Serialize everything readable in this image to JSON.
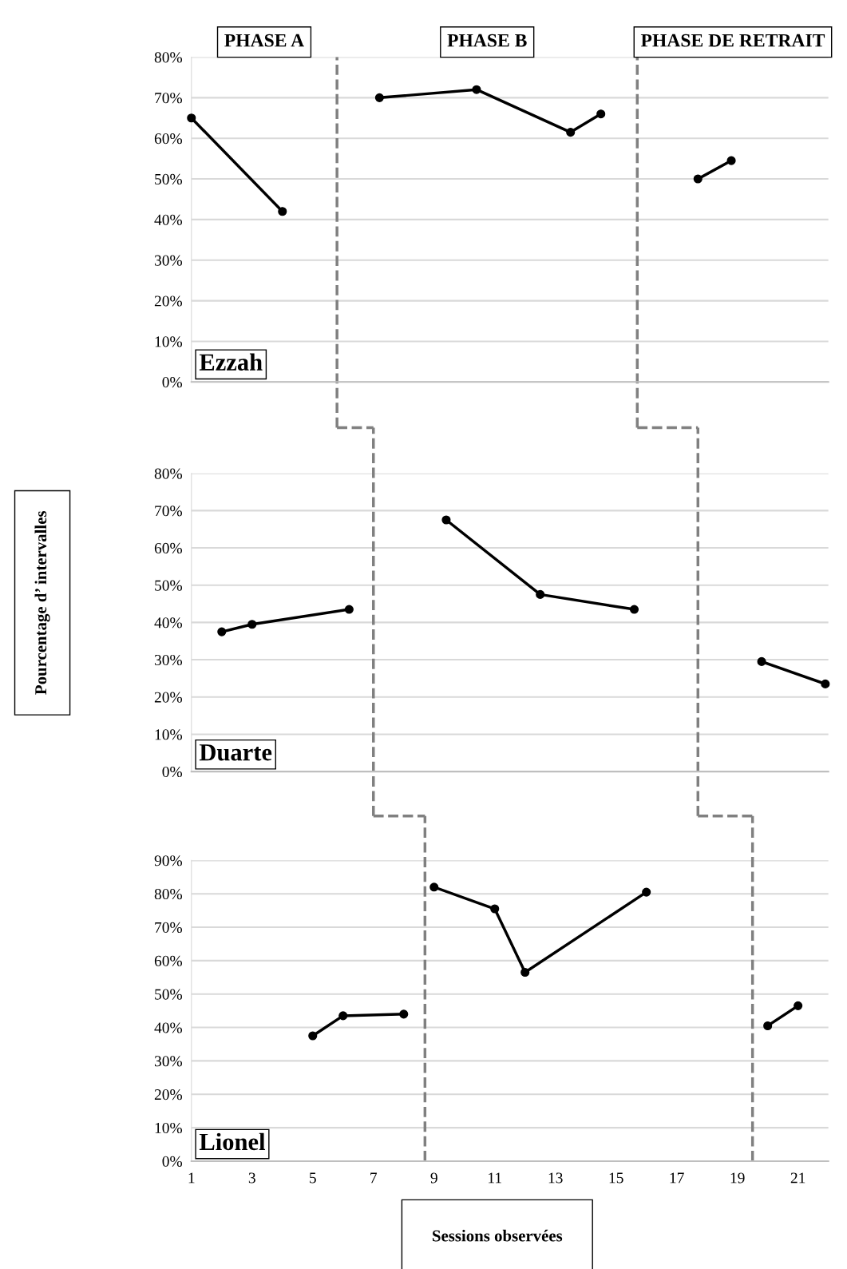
{
  "chart_data": [
    {
      "type": "line",
      "title": "Ezzah",
      "annotations": [
        "PHASE A",
        "PHASE B",
        "PHASE DE RETRAIT"
      ],
      "xlim": [
        1,
        22
      ],
      "ylim": [
        0,
        80
      ],
      "tick_labels": "y",
      "yticks": [
        {
          "value": 0,
          "label": "0%"
        },
        {
          "value": 10,
          "label": "10%"
        },
        {
          "value": 20,
          "label": "20%"
        },
        {
          "value": 30,
          "label": "30%"
        },
        {
          "value": 40,
          "label": "40%"
        },
        {
          "value": 50,
          "label": "50%"
        },
        {
          "value": 60,
          "label": "60%"
        },
        {
          "value": 70,
          "label": "70%"
        },
        {
          "value": 80,
          "label": "80%"
        }
      ],
      "grid": "y",
      "legend": false,
      "marker": "circle",
      "line_style": "solid",
      "ref_lines": [
        {
          "axis": "x",
          "value": 5.8,
          "color": "#808080",
          "line_style": "dashed"
        },
        {
          "axis": "x",
          "value": 15.7,
          "color": "#808080",
          "line_style": "dashed"
        }
      ],
      "series": [
        {
          "color": "#000000",
          "x": [
            1,
            4
          ],
          "values": [
            65,
            42
          ]
        },
        {
          "color": "#000000",
          "x": [
            7.2,
            10.4,
            13.5,
            14.5
          ],
          "values": [
            70,
            72,
            61.5,
            66
          ]
        },
        {
          "color": "#000000",
          "x": [
            17.7,
            18.8
          ],
          "values": [
            50,
            54.5
          ]
        }
      ]
    },
    {
      "type": "line",
      "title": "Duarte",
      "ylabel": "Pourcentage d’ intervalles",
      "xlim": [
        1,
        22
      ],
      "ylim": [
        0,
        80
      ],
      "tick_labels": "y",
      "yticks": [
        {
          "value": 0,
          "label": "0%"
        },
        {
          "value": 10,
          "label": "10%"
        },
        {
          "value": 20,
          "label": "20%"
        },
        {
          "value": 30,
          "label": "30%"
        },
        {
          "value": 40,
          "label": "40%"
        },
        {
          "value": 50,
          "label": "50%"
        },
        {
          "value": 60,
          "label": "60%"
        },
        {
          "value": 70,
          "label": "70%"
        },
        {
          "value": 80,
          "label": "80%"
        }
      ],
      "grid": "y",
      "legend": false,
      "marker": "circle",
      "line_style": "solid",
      "ref_lines": [
        {
          "axis": "x",
          "value": 7.0,
          "color": "#808080",
          "line_style": "dashed"
        },
        {
          "axis": "x",
          "value": 17.7,
          "color": "#808080",
          "line_style": "dashed"
        }
      ],
      "series": [
        {
          "color": "#000000",
          "x": [
            2,
            3,
            6.2
          ],
          "values": [
            37.5,
            39.5,
            43.5
          ]
        },
        {
          "color": "#000000",
          "x": [
            9.4,
            12.5,
            15.6
          ],
          "values": [
            67.5,
            47.5,
            43.5
          ]
        },
        {
          "color": "#000000",
          "x": [
            19.8,
            21.9
          ],
          "values": [
            29.5,
            23.5
          ]
        }
      ]
    },
    {
      "type": "line",
      "title": "Lionel",
      "xlabel": "Sessions observées",
      "xlim": [
        1,
        22
      ],
      "ylim": [
        0,
        90
      ],
      "xticks": [
        1,
        3,
        5,
        7,
        9,
        11,
        13,
        15,
        17,
        19,
        21
      ],
      "yticks": [
        {
          "value": 0,
          "label": "0%"
        },
        {
          "value": 10,
          "label": "10%"
        },
        {
          "value": 20,
          "label": "20%"
        },
        {
          "value": 30,
          "label": "30%"
        },
        {
          "value": 40,
          "label": "40%"
        },
        {
          "value": 50,
          "label": "50%"
        },
        {
          "value": 60,
          "label": "60%"
        },
        {
          "value": 70,
          "label": "70%"
        },
        {
          "value": 80,
          "label": "80%"
        },
        {
          "value": 90,
          "label": "90%"
        }
      ],
      "grid": "y",
      "legend": false,
      "marker": "circle",
      "line_style": "solid",
      "ref_lines": [
        {
          "axis": "x",
          "value": 8.7,
          "color": "#808080",
          "line_style": "dashed"
        },
        {
          "axis": "x",
          "value": 19.5,
          "color": "#808080",
          "line_style": "dashed"
        }
      ],
      "series": [
        {
          "color": "#000000",
          "x": [
            5,
            6,
            8
          ],
          "values": [
            37.5,
            43.5,
            44
          ]
        },
        {
          "color": "#000000",
          "x": [
            9,
            11,
            12,
            16
          ],
          "values": [
            82,
            75.5,
            56.5,
            80.5
          ]
        },
        {
          "color": "#000000",
          "x": [
            20,
            21
          ],
          "values": [
            40.5,
            46.5
          ]
        }
      ]
    }
  ]
}
